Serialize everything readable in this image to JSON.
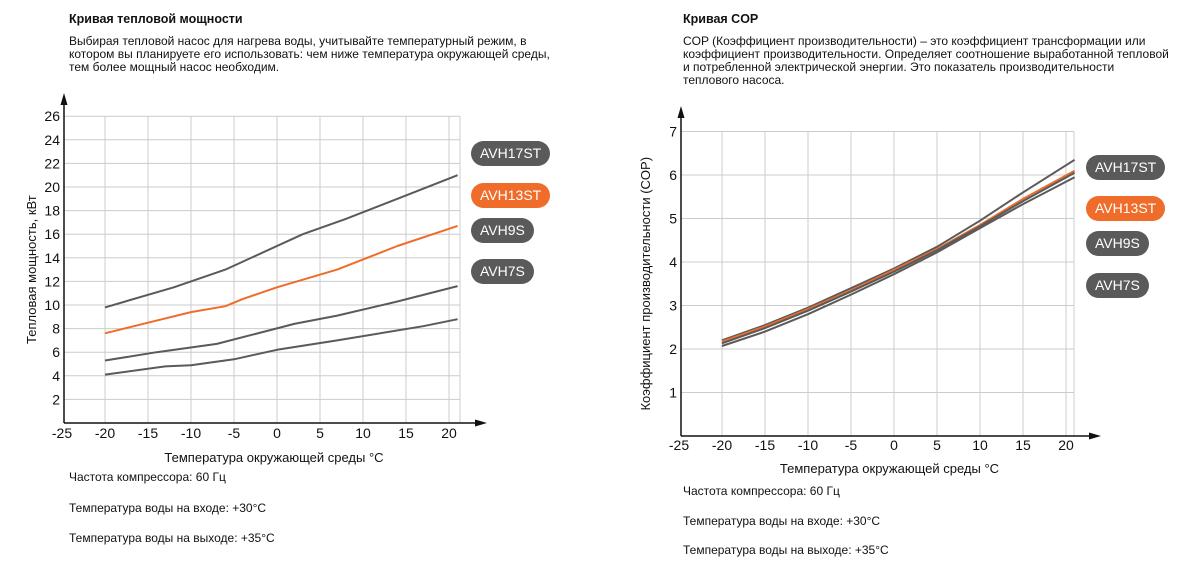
{
  "colors": {
    "dark": "#5a5a5a",
    "accent": "#ef6c2a",
    "grid": "#cccccc",
    "axis": "#111111"
  },
  "left": {
    "title": "Кривая тепловой мощности",
    "description": "Выбирая тепловой насос для нагрева воды, учитывайте температурный режим, в котором вы планируете его использовать: чем ниже температура окружающей среды, тем более мощный насос необходим.",
    "notes": [
      "Частота компрессора: 60 Гц",
      "Температура воды на входе: +30°C",
      "Температура воды на выходе: +35°C"
    ]
  },
  "right": {
    "title": "Кривая COP",
    "description": "COP (Коэффициент производительности) – это коэффициент трансформации или коэффициент производительности. Определяет соотношение выработанной тепловой и потребленной электрической энергии. Это показатель производительности теплового насоса.",
    "notes": [
      "Частота компрессора: 60 Гц",
      "Температура воды на входе: +30°C",
      "Температура воды на выходе: +35°C"
    ]
  },
  "chart_data": [
    {
      "type": "line",
      "title": "Кривая тепловой мощности",
      "xlabel": "Температура окружающей среды °C",
      "ylabel": "Тепловая мощность, кВт",
      "xlim": [
        -25,
        21
      ],
      "ylim": [
        0,
        26
      ],
      "xticks": [
        -25,
        -20,
        -15,
        -10,
        -5,
        0,
        5,
        10,
        15,
        20
      ],
      "yticks": [
        2,
        4,
        6,
        8,
        10,
        12,
        14,
        16,
        18,
        20,
        22,
        24,
        26
      ],
      "grid": true,
      "legend": "right",
      "series": [
        {
          "name": "AVH17ST",
          "color": "#5a5a5a",
          "x": [
            -20,
            -12,
            -6,
            3,
            8,
            14,
            21
          ],
          "y": [
            9.8,
            11.5,
            13.0,
            16.0,
            17.3,
            19.0,
            21.0
          ]
        },
        {
          "name": "AVH13ST",
          "color": "#ef6c2a",
          "x": [
            -20,
            -15,
            -10,
            -6,
            -4,
            0,
            7,
            14,
            21
          ],
          "y": [
            7.6,
            8.5,
            9.4,
            9.9,
            10.5,
            11.5,
            13.0,
            15.0,
            16.7
          ]
        },
        {
          "name": "AVH9S",
          "color": "#5a5a5a",
          "x": [
            -20,
            -14,
            -7,
            2,
            7,
            14,
            21
          ],
          "y": [
            5.3,
            6.0,
            6.7,
            8.4,
            9.1,
            10.3,
            11.6
          ]
        },
        {
          "name": "AVH7S",
          "color": "#5a5a5a",
          "x": [
            -20,
            -13,
            -10,
            -5,
            0,
            7,
            17,
            21
          ],
          "y": [
            4.1,
            4.8,
            4.9,
            5.4,
            6.2,
            7.0,
            8.2,
            8.8
          ]
        }
      ]
    },
    {
      "type": "line",
      "title": "Кривая COP",
      "xlabel": "Температура окружающей среды °C",
      "ylabel": "Коэффициент производительности (COP)",
      "xlim": [
        -25,
        21
      ],
      "ylim": [
        0,
        7
      ],
      "xticks": [
        -25,
        -20,
        -15,
        -10,
        -5,
        0,
        5,
        10,
        15,
        20
      ],
      "yticks": [
        1,
        2,
        3,
        4,
        5,
        6,
        7
      ],
      "grid": true,
      "legend": "right",
      "series": [
        {
          "name": "AVH17ST",
          "color": "#5a5a5a",
          "x": [
            -20,
            -15,
            -10,
            -5,
            0,
            5,
            10,
            15,
            21
          ],
          "y": [
            2.2,
            2.55,
            2.95,
            3.4,
            3.85,
            4.35,
            4.95,
            5.6,
            6.35
          ]
        },
        {
          "name": "AVH13ST",
          "color": "#ef6c2a",
          "x": [
            -20,
            -15,
            -10,
            -5,
            0,
            5,
            10,
            15,
            21
          ],
          "y": [
            2.17,
            2.52,
            2.92,
            3.35,
            3.82,
            4.3,
            4.85,
            5.45,
            6.1
          ]
        },
        {
          "name": "AVH9S",
          "color": "#5a5a5a",
          "x": [
            -20,
            -15,
            -10,
            -5,
            0,
            5,
            10,
            15,
            21
          ],
          "y": [
            2.13,
            2.48,
            2.88,
            3.32,
            3.78,
            4.27,
            4.82,
            5.4,
            6.05
          ]
        },
        {
          "name": "AVH7S",
          "color": "#5a5a5a",
          "x": [
            -20,
            -15,
            -10,
            -5,
            0,
            5,
            10,
            15,
            21
          ],
          "y": [
            2.07,
            2.4,
            2.8,
            3.25,
            3.72,
            4.22,
            4.78,
            5.33,
            5.95
          ]
        }
      ]
    }
  ]
}
